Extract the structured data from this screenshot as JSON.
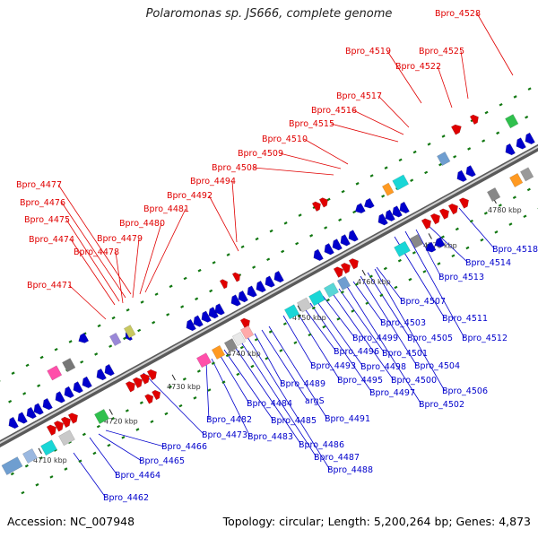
{
  "title": "Polaromonas sp. JS666, complete genome",
  "footer": {
    "accession": "Accession: NC_007948",
    "meta": "Topology: circular; Length: 5,200,264 bp; Genes: 4,873"
  },
  "colors": {
    "forward": "#e00000",
    "reverse": "#0000cc",
    "backbone": "#7a7a7a",
    "tick": "#117711"
  },
  "kbp_labels": [
    "4710 kbp",
    "4720 kbp",
    "4730 kbp",
    "4740 kbp",
    "4750 kbp",
    "4760 kbp",
    "4770 kbp",
    "4780 kbp"
  ],
  "forward_genes": [
    "Bpro_4471",
    "Bpro_4474",
    "Bpro_4475",
    "Bpro_4476",
    "Bpro_4477",
    "Bpro_4478",
    "Bpro_4479",
    "Bpro_4480",
    "Bpro_4481",
    "Bpro_4492",
    "Bpro_4494",
    "Bpro_4508",
    "Bpro_4509",
    "Bpro_4510",
    "Bpro_4515",
    "Bpro_4516",
    "Bpro_4517",
    "Bpro_4519",
    "Bpro_4522",
    "Bpro_4525",
    "Bpro_4528"
  ],
  "reverse_genes": [
    "Bpro_4462",
    "Bpro_4464",
    "Bpro_4465",
    "Bpro_4466",
    "Bpro_4473",
    "Bpro_4482",
    "Bpro_4483",
    "Bpro_4484",
    "Bpro_4485",
    "Bpro_4486",
    "Bpro_4487",
    "Bpro_4488",
    "Bpro_4489",
    "argS",
    "Bpro_4491",
    "Bpro_4493",
    "Bpro_4495",
    "Bpro_4496",
    "Bpro_4497",
    "Bpro_4498",
    "Bpro_4499",
    "Bpro_4500",
    "Bpro_4501",
    "Bpro_4502",
    "Bpro_4503",
    "Bpro_4504",
    "Bpro_4505",
    "Bpro_4506",
    "Bpro_4507",
    "Bpro_4511",
    "Bpro_4512",
    "Bpro_4513",
    "Bpro_4514",
    "Bpro_4518"
  ]
}
